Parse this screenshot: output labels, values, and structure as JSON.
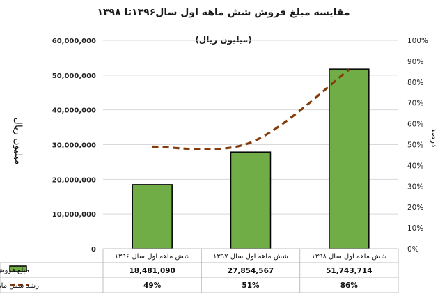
{
  "chart_data": {
    "type": "bar",
    "title": "مقایسه مبلغ فروش شش ماهه اول سال۱۳۹۶تا ۱۳۹۸",
    "subtitle": "(میلیون ریال)",
    "ylabel": "میلیون ریال",
    "y2label": "درصد",
    "ylim": [
      0,
      60000000
    ],
    "y_ticks": [
      "0",
      "10,000,000",
      "20,000,000",
      "30,000,000",
      "40,000,000",
      "50,000,000",
      "60,000,000"
    ],
    "y2lim": [
      0,
      100
    ],
    "y2_ticks": [
      "0%",
      "10%",
      "20%",
      "30%",
      "40%",
      "50%",
      "60%",
      "70%",
      "80%",
      "90%",
      "100%"
    ],
    "categories": [
      "شش ماهه اول سال ۱۳۹۶",
      "شش ماهه اول سال ۱۳۹۷",
      "شش ماهه اول سال ۱۳۹۸"
    ],
    "grid": true,
    "series": [
      {
        "name": "مبلغ فروش(میلیون ریال)",
        "type": "bar",
        "axis": "left",
        "color": "#70ad47",
        "values": [
          18481090,
          27854567,
          51743714
        ],
        "labels": [
          "18,481,090",
          "27,854,567",
          "51,743,714"
        ]
      },
      {
        "name": "رشد شش ماهه",
        "type": "line",
        "axis": "right",
        "style": "dashed",
        "color": "#843c0c",
        "values": [
          49,
          51,
          86
        ],
        "labels": [
          "49%",
          "51%",
          "86%"
        ]
      }
    ]
  }
}
